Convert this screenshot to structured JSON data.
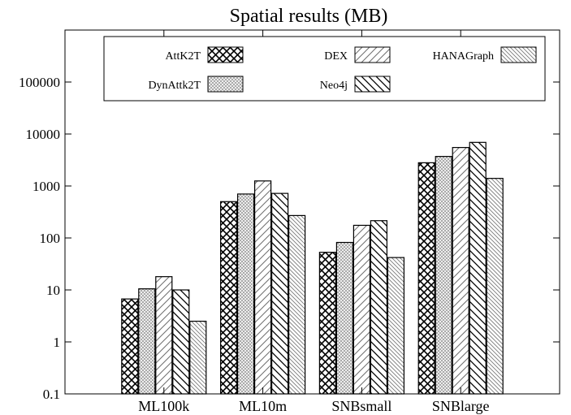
{
  "chart_data": {
    "type": "bar",
    "title": "Spatial results (MB)",
    "xlabel": "",
    "ylabel": "",
    "yscale": "log",
    "ylim": [
      0.1,
      1000000
    ],
    "yticks": [
      "0.1",
      "1",
      "10",
      "100",
      "1000",
      "10000",
      "100000"
    ],
    "categories": [
      "ML100k",
      "ML10m",
      "SNBsmall",
      "SNBlarge"
    ],
    "grid": false,
    "legend_position": "top",
    "series": [
      {
        "name": "AttK2T",
        "pattern": "crosshatch-dense",
        "values": [
          6.7,
          500,
          53,
          2800
        ]
      },
      {
        "name": "DynAttk2T",
        "pattern": "crosshatch-fine-gray",
        "values": [
          10.5,
          700,
          82,
          3700
        ]
      },
      {
        "name": "DEX",
        "pattern": "diagonal-forward",
        "values": [
          18,
          1250,
          175,
          5500
        ]
      },
      {
        "name": "Neo4j",
        "pattern": "diagonal-backward",
        "values": [
          10,
          720,
          215,
          6900
        ]
      },
      {
        "name": "HANAGraph",
        "pattern": "diagonal-backward-fine",
        "values": [
          2.5,
          270,
          42,
          1400
        ]
      }
    ]
  }
}
